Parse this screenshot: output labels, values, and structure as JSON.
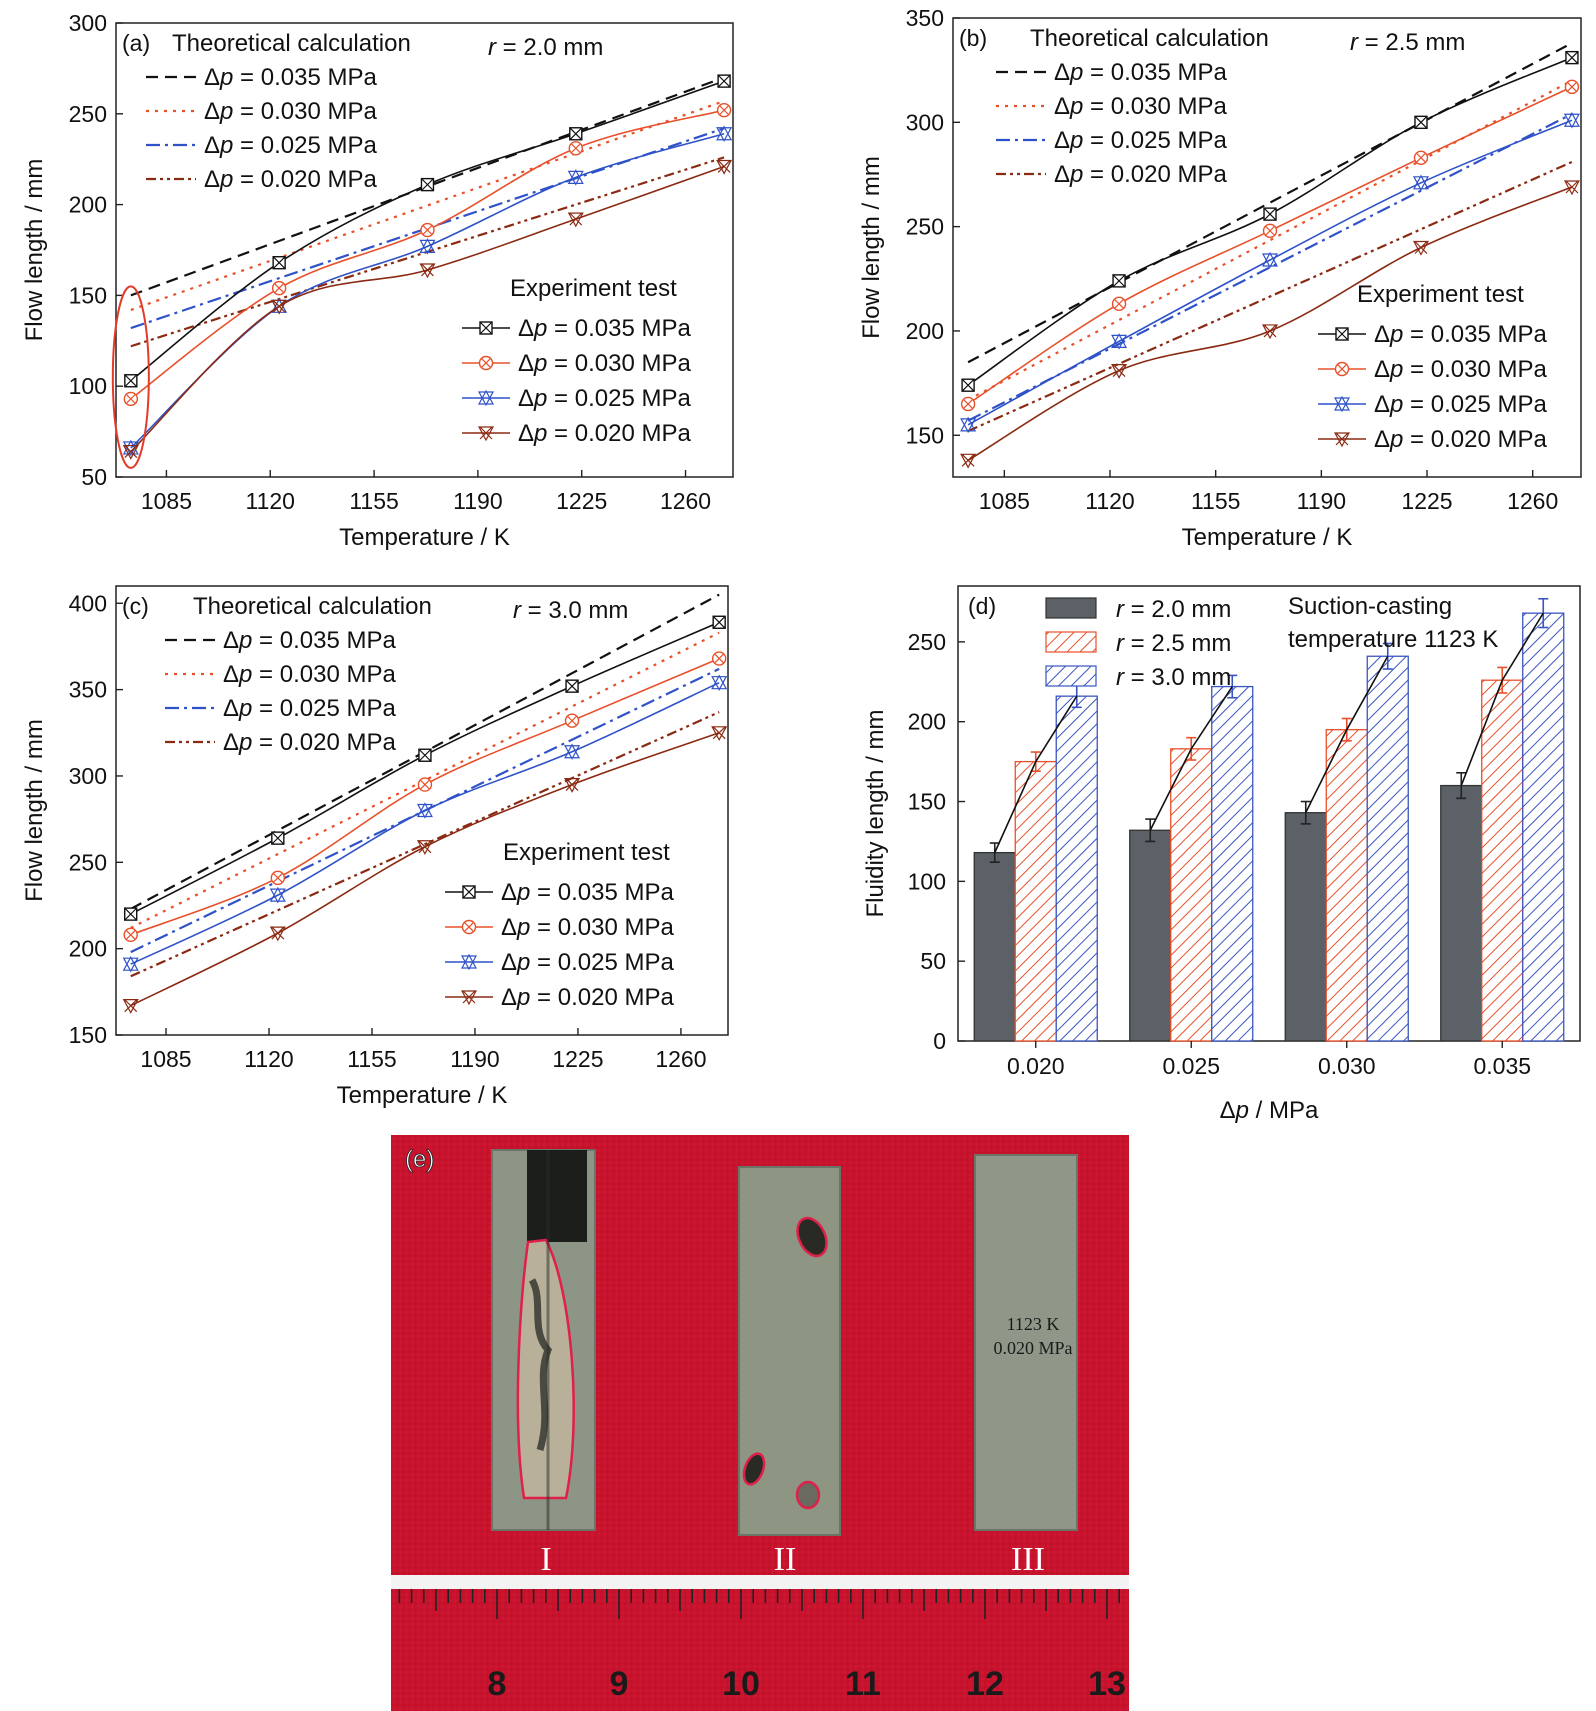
{
  "panel_labels": [
    "(a)",
    "(b)",
    "(c)",
    "(d)",
    "(e)"
  ],
  "legend_headers": {
    "theory": "Theoretical calculation",
    "experiment": "Experiment test"
  },
  "dp_labels": [
    "Δp = 0.035 MPa",
    "Δp = 0.030 MPa",
    "Δp = 0.025 MPa",
    "Δp = 0.020 MPa"
  ],
  "series_colors": [
    "#111111",
    "#e8502a",
    "#2f52c8",
    "#8b2a12"
  ],
  "theory_dash": [
    "12,7",
    "3,6",
    "14,5,3,5",
    "10,4,3,4,3,4"
  ],
  "bar_colors": {
    "gray": "#5b6166",
    "orange": "#e8502a",
    "blue": "#3a55c0"
  },
  "photo": {
    "label_text": "1123 K\n0.020 MPa",
    "specimen_marks": [
      "I",
      "II",
      "III"
    ],
    "ruler_numbers": [
      "8",
      "9",
      "10",
      "11",
      "12",
      "13"
    ],
    "background_color": "#c8132e"
  },
  "chart_data": [
    {
      "type": "line",
      "panel": "(a)",
      "annotation": "r = 2.0 mm",
      "xlabel": "Temperature / K",
      "ylabel": "Flow length / mm",
      "xlim": [
        1068,
        1276
      ],
      "ylim": [
        50,
        300
      ],
      "xticks": [
        1085,
        1120,
        1155,
        1190,
        1225,
        1260
      ],
      "yticks": [
        50,
        100,
        150,
        200,
        250,
        300
      ],
      "theory_x": [
        1073,
        1273
      ],
      "theory": [
        {
          "name": "Δp = 0.035 MPa",
          "values": [
            150,
            270
          ]
        },
        {
          "name": "Δp = 0.030 MPa",
          "values": [
            142,
            257
          ]
        },
        {
          "name": "Δp = 0.025 MPa",
          "values": [
            132,
            242
          ]
        },
        {
          "name": "Δp = 0.020 MPa",
          "values": [
            122,
            226
          ]
        }
      ],
      "x": [
        1073,
        1123,
        1173,
        1223,
        1273
      ],
      "series": [
        {
          "name": "Δp = 0.035 MPa",
          "values": [
            103,
            168,
            211,
            239,
            268
          ]
        },
        {
          "name": "Δp = 0.030 MPa",
          "values": [
            93,
            154,
            186,
            231,
            252
          ]
        },
        {
          "name": "Δp = 0.025 MPa",
          "values": [
            66,
            144,
            177,
            215,
            239
          ]
        },
        {
          "name": "Δp = 0.020 MPa",
          "values": [
            64,
            144,
            164,
            192,
            221
          ]
        }
      ],
      "highlight_ellipse": true
    },
    {
      "type": "line",
      "panel": "(b)",
      "annotation": "r = 2.5 mm",
      "xlabel": "Temperature / K",
      "ylabel": "Flow length / mm",
      "xlim": [
        1068,
        1276
      ],
      "ylim": [
        130,
        350
      ],
      "xticks": [
        1085,
        1120,
        1155,
        1190,
        1225,
        1260
      ],
      "yticks": [
        150,
        200,
        250,
        300,
        350
      ],
      "theory_x": [
        1073,
        1273
      ],
      "theory": [
        {
          "name": "Δp = 0.035 MPa",
          "values": [
            185,
            338
          ]
        },
        {
          "name": "Δp = 0.030 MPa",
          "values": [
            167,
            320
          ]
        },
        {
          "name": "Δp = 0.025 MPa",
          "values": [
            157,
            304
          ]
        },
        {
          "name": "Δp = 0.020 MPa",
          "values": [
            152,
            281
          ]
        }
      ],
      "x": [
        1073,
        1123,
        1173,
        1223,
        1273
      ],
      "series": [
        {
          "name": "Δp = 0.035 MPa",
          "values": [
            174,
            224,
            256,
            300,
            331
          ]
        },
        {
          "name": "Δp = 0.030 MPa",
          "values": [
            165,
            213,
            248,
            283,
            317
          ]
        },
        {
          "name": "Δp = 0.025 MPa",
          "values": [
            155,
            195,
            234,
            271,
            301
          ]
        },
        {
          "name": "Δp = 0.020 MPa",
          "values": [
            138,
            181,
            200,
            240,
            269
          ]
        }
      ]
    },
    {
      "type": "line",
      "panel": "(c)",
      "annotation": "r = 3.0 mm",
      "xlabel": "Temperature / K",
      "ylabel": "Flow length / mm",
      "xlim": [
        1068,
        1276
      ],
      "ylim": [
        150,
        410
      ],
      "xticks": [
        1085,
        1120,
        1155,
        1190,
        1225,
        1260
      ],
      "yticks": [
        150,
        200,
        250,
        300,
        350,
        400
      ],
      "theory_x": [
        1073,
        1273
      ],
      "theory": [
        {
          "name": "Δp = 0.035 MPa",
          "values": [
            223,
            405
          ]
        },
        {
          "name": "Δp = 0.030 MPa",
          "values": [
            212,
            383
          ]
        },
        {
          "name": "Δp = 0.025 MPa",
          "values": [
            198,
            362
          ]
        },
        {
          "name": "Δp = 0.020 MPa",
          "values": [
            184,
            337
          ]
        }
      ],
      "x": [
        1073,
        1123,
        1173,
        1223,
        1273
      ],
      "series": [
        {
          "name": "Δp = 0.035 MPa",
          "values": [
            220,
            264,
            312,
            352,
            389
          ]
        },
        {
          "name": "Δp = 0.030 MPa",
          "values": [
            208,
            241,
            295,
            332,
            368
          ]
        },
        {
          "name": "Δp = 0.025 MPa",
          "values": [
            191,
            231,
            280,
            314,
            354
          ]
        },
        {
          "name": "Δp = 0.020 MPa",
          "values": [
            167,
            209,
            259,
            295,
            325
          ]
        }
      ]
    },
    {
      "type": "bar",
      "panel": "(d)",
      "annotation": "Suction-casting\ntemperature 1123 K",
      "xlabel": "Δp / MPa",
      "ylabel": "Fluidity length / mm",
      "ylim": [
        0,
        285
      ],
      "yticks": [
        0,
        50,
        100,
        150,
        200,
        250
      ],
      "categories": [
        "0.020",
        "0.025",
        "0.030",
        "0.035"
      ],
      "series": [
        {
          "name": "r = 2.0 mm",
          "values": [
            118,
            132,
            143,
            160
          ],
          "errors": [
            6,
            7,
            7,
            8
          ]
        },
        {
          "name": "r = 2.5 mm",
          "values": [
            175,
            183,
            195,
            226
          ],
          "errors": [
            6,
            7,
            7,
            8
          ]
        },
        {
          "name": "r = 3.0 mm",
          "values": [
            216,
            222,
            241,
            268
          ],
          "errors": [
            7,
            7,
            8,
            9
          ]
        }
      ]
    }
  ]
}
